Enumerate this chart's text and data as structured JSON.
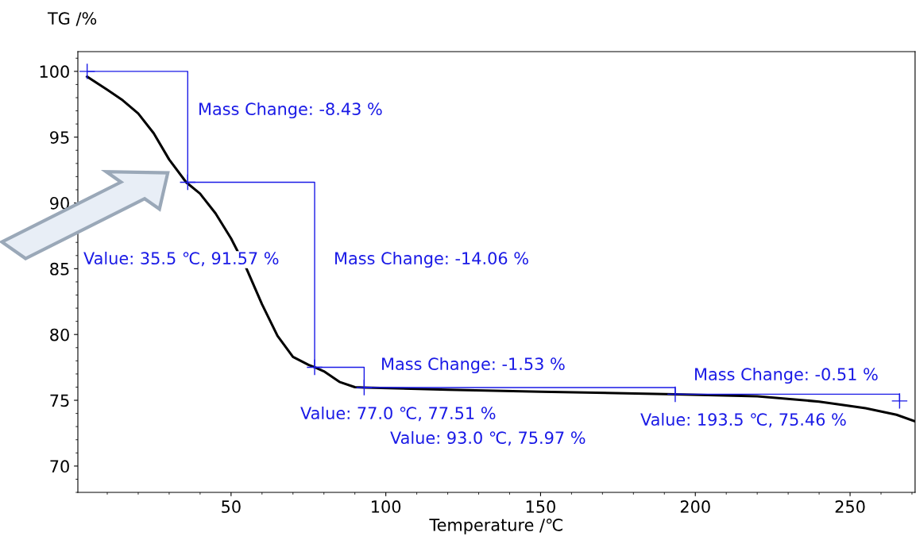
{
  "chart_data": {
    "type": "line",
    "xlabel": "Temperature /℃",
    "ylabel": "TG /%",
    "xlim": [
      0.5,
      271
    ],
    "ylim": [
      68,
      101.5
    ],
    "xticks": [
      50,
      100,
      150,
      200,
      250
    ],
    "yticks": [
      70,
      75,
      80,
      85,
      90,
      95,
      100
    ],
    "grid": false,
    "series": [
      {
        "color": "#000000",
        "x": [
          3.5,
          10,
          15,
          20,
          25,
          30,
          35.5,
          40,
          45,
          50,
          55,
          60,
          65,
          70,
          75,
          77,
          80,
          85,
          90,
          93,
          120,
          150,
          193.5,
          220,
          240,
          255,
          265,
          271
        ],
        "values": [
          99.6,
          98.6,
          97.8,
          96.8,
          95.3,
          93.3,
          91.57,
          90.7,
          89.2,
          87.3,
          85.0,
          82.3,
          79.9,
          78.3,
          77.7,
          77.51,
          77.2,
          76.4,
          76.0,
          75.97,
          75.8,
          75.65,
          75.46,
          75.3,
          74.9,
          74.4,
          73.9,
          73.4
        ]
      },
      {
        "type": "step",
        "color": "#1a1ae6",
        "marker": "cross",
        "x": [
          3.5,
          36,
          77,
          93,
          193.5,
          266
        ],
        "values": [
          100,
          91.57,
          77.51,
          75.97,
          75.46,
          74.95
        ]
      }
    ],
    "annotations": [
      "Mass Change: -8.43 %",
      "Value: 35.5 ℃, 91.57 %",
      "Mass Change: -14.06 %",
      "Mass Change: -1.53 %",
      "Value: 77.0 ℃, 77.51 %",
      "Value: 93.0 ℃, 75.97 %",
      "Mass Change: -0.51 %",
      "Value: 193.5 ℃, 75.46 %"
    ]
  }
}
